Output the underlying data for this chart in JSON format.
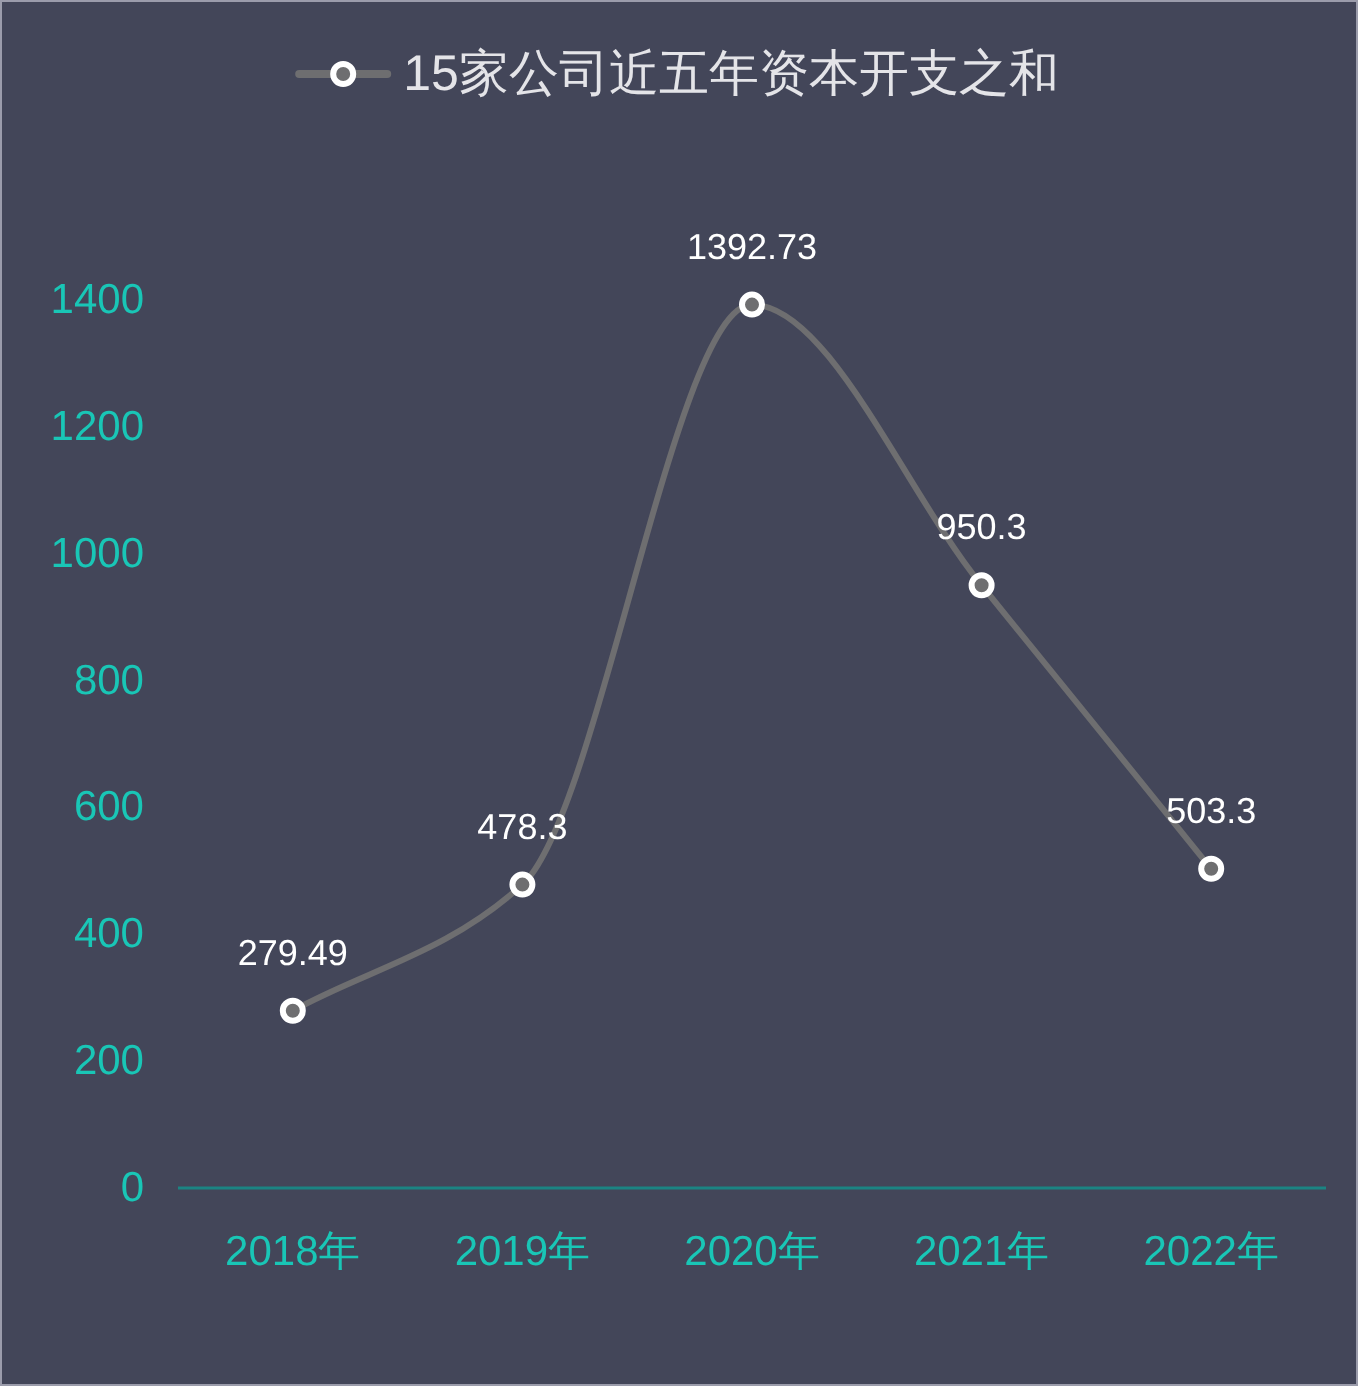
{
  "chart_data": {
    "type": "line",
    "categories": [
      "2018年",
      "2019年",
      "2020年",
      "2021年",
      "2022年"
    ],
    "series": [
      {
        "name": "15家公司近五年资本开支之和",
        "color": "#6e6e70",
        "values": [
          279.49,
          478.3,
          1392.73,
          950.3,
          503.3
        ]
      }
    ],
    "ylim": [
      0,
      1400
    ],
    "yticks": [
      0,
      200,
      400,
      600,
      800,
      1000,
      1200,
      1400
    ],
    "legend": "top",
    "marker": "circle",
    "line_style": "solid",
    "data_labels": true
  }
}
